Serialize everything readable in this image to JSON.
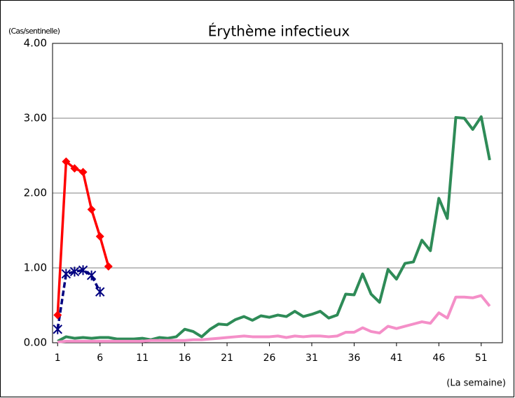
{
  "chart_data": {
    "type": "line",
    "title": "Érythème infectieux",
    "ylabel": "(Cas/sentinelle)",
    "xlabel": "(La semaine)",
    "xlim": [
      0.4,
      53.5
    ],
    "xticks": [
      1,
      6,
      11,
      16,
      21,
      26,
      31,
      36,
      41,
      46,
      51
    ],
    "ylim": [
      0,
      4
    ],
    "yticks": [
      {
        "value": 0,
        "label": "0.00"
      },
      {
        "value": 1,
        "label": "1.00"
      },
      {
        "value": 2,
        "label": "2.00"
      },
      {
        "value": 3,
        "label": "3.00"
      },
      {
        "value": 4,
        "label": "4.00"
      }
    ],
    "grid": true,
    "series": [
      {
        "color": "#2e8b57",
        "marker": "none",
        "dash": false,
        "x": [
          1,
          2,
          3,
          4,
          5,
          6,
          7,
          8,
          9,
          10,
          11,
          12,
          13,
          14,
          15,
          16,
          17,
          18,
          19,
          20,
          21,
          22,
          23,
          24,
          25,
          26,
          27,
          28,
          29,
          30,
          31,
          32,
          33,
          34,
          35,
          36,
          37,
          38,
          39,
          40,
          41,
          42,
          43,
          44,
          45,
          46,
          47,
          48,
          49,
          50,
          51,
          52
        ],
        "values": [
          0.02,
          0.08,
          0.06,
          0.07,
          0.06,
          0.07,
          0.07,
          0.05,
          0.05,
          0.05,
          0.06,
          0.04,
          0.07,
          0.06,
          0.08,
          0.18,
          0.15,
          0.08,
          0.18,
          0.25,
          0.24,
          0.31,
          0.35,
          0.3,
          0.36,
          0.34,
          0.37,
          0.35,
          0.42,
          0.35,
          0.38,
          0.42,
          0.33,
          0.37,
          0.65,
          0.64,
          0.92,
          0.65,
          0.54,
          0.98,
          0.85,
          1.06,
          1.08,
          1.37,
          1.23,
          1.93,
          1.66,
          3.01,
          3.0,
          2.85,
          3.02,
          2.44
        ]
      },
      {
        "color": "#f48fc8",
        "marker": "none",
        "dash": false,
        "x": [
          1,
          2,
          3,
          4,
          5,
          6,
          7,
          8,
          9,
          10,
          11,
          12,
          13,
          14,
          15,
          16,
          17,
          18,
          19,
          20,
          21,
          22,
          23,
          24,
          25,
          26,
          27,
          28,
          29,
          30,
          31,
          32,
          33,
          34,
          35,
          36,
          37,
          38,
          39,
          40,
          41,
          42,
          43,
          44,
          45,
          46,
          47,
          48,
          49,
          50,
          51,
          52
        ],
        "values": [
          0.01,
          0.02,
          0.02,
          0.02,
          0.02,
          0.02,
          0.02,
          0.02,
          0.02,
          0.02,
          0.02,
          0.03,
          0.03,
          0.03,
          0.03,
          0.03,
          0.04,
          0.04,
          0.05,
          0.06,
          0.07,
          0.08,
          0.09,
          0.08,
          0.08,
          0.08,
          0.09,
          0.07,
          0.09,
          0.08,
          0.09,
          0.09,
          0.08,
          0.09,
          0.14,
          0.14,
          0.2,
          0.15,
          0.13,
          0.22,
          0.19,
          0.22,
          0.25,
          0.28,
          0.26,
          0.4,
          0.33,
          0.61,
          0.61,
          0.6,
          0.63,
          0.49
        ]
      },
      {
        "color": "#000080",
        "marker": "star",
        "dash": true,
        "x": [
          1,
          2,
          3,
          4,
          5,
          6
        ],
        "values": [
          0.18,
          0.92,
          0.95,
          0.97,
          0.9,
          0.68
        ]
      },
      {
        "color": "#ff0000",
        "marker": "diamond",
        "dash": false,
        "x": [
          1,
          2,
          3,
          4,
          5,
          6,
          7
        ],
        "values": [
          0.37,
          2.42,
          2.33,
          2.28,
          1.78,
          1.42,
          1.02
        ]
      }
    ]
  }
}
